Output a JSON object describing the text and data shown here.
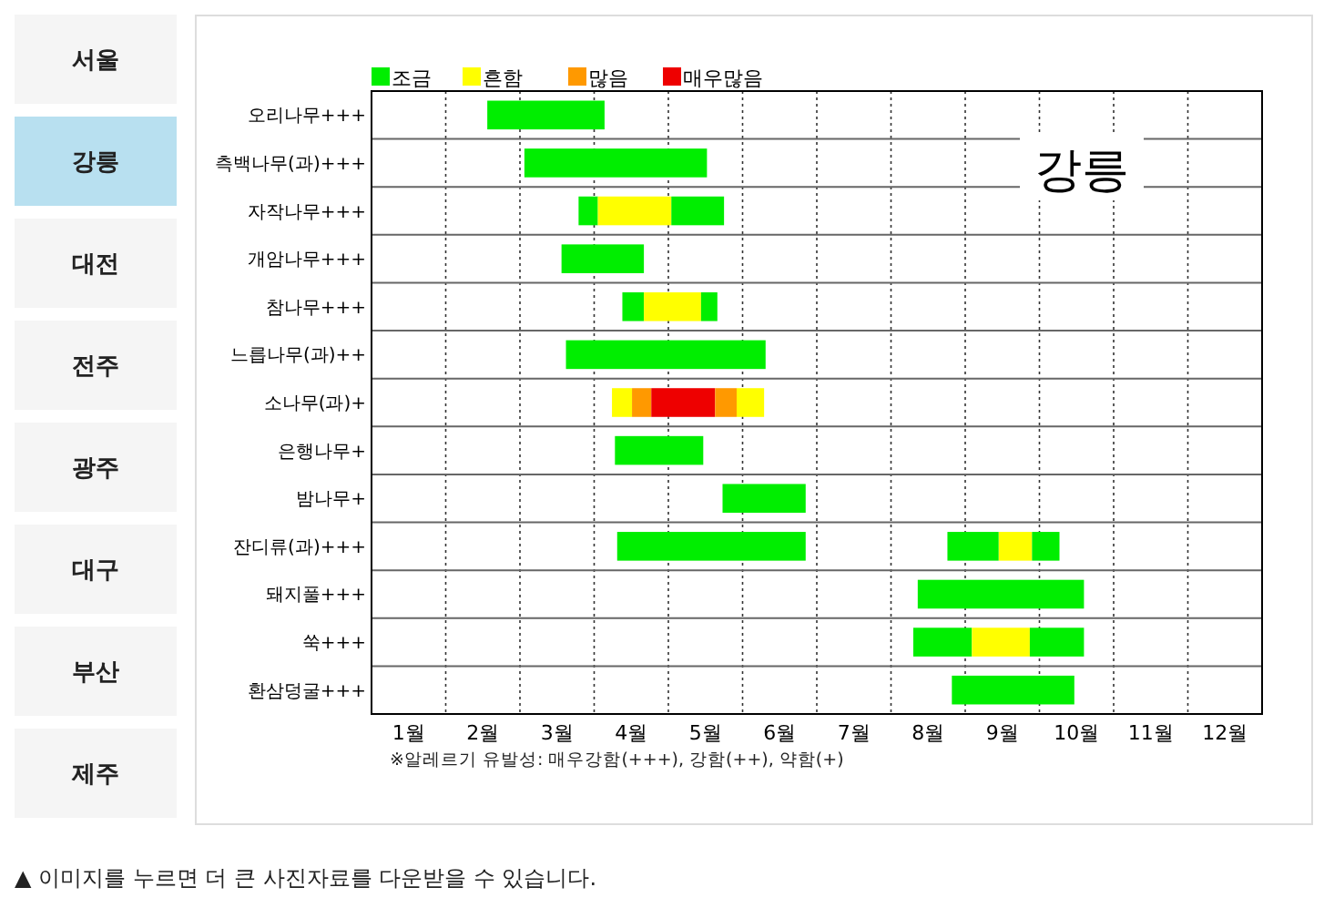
{
  "chart_data": [
    {
      "type": "other",
      "categories": [
        "서울",
        "강릉",
        "대전",
        "전주",
        "광주",
        "대구",
        "부산",
        "제주"
      ]
    },
    {
      "type": "bar",
      "orientation": "horizontal",
      "title": "강릉",
      "categories": [
        "오리나무+++",
        "측백나무(과)+++",
        "자작나무+++",
        "개암나무+++",
        "참나무+++",
        "느릅나무(과)++",
        "소나무(과)+",
        "은행나무+",
        "밤나무+",
        "잔디류(과)+++",
        "돼지풀+++",
        "쑥+++",
        "환삼덩굴+++"
      ],
      "series": [
        {
          "name": "조금",
          "color": "#00ee00",
          "base": [
            1.56,
            2.06,
            2.79,
            2.56,
            3.38,
            2.62,
            null,
            3.28,
            4.73,
            3.31,
            7.36,
            7.3,
            7.82
          ],
          "values": [
            1.58,
            2.46,
            0.26,
            1.11,
            0.29,
            2.69,
            null,
            1.19,
            1.12,
            2.54,
            2.24,
            0.79,
            1.65
          ]
        },
        {
          "name": "흔함",
          "color": "#ffff00",
          "base": [
            null,
            null,
            3.05,
            null,
            3.67,
            null,
            3.24,
            null,
            null,
            8.45,
            null,
            8.09,
            null
          ],
          "values": [
            null,
            null,
            0.99,
            null,
            0.77,
            null,
            0.27,
            null,
            null,
            0.45,
            null,
            0.78,
            null
          ]
        },
        {
          "name": "많음",
          "color": "#ff9900",
          "base": [
            null,
            null,
            null,
            null,
            null,
            null,
            3.51,
            null,
            null,
            null,
            null,
            null,
            null
          ],
          "values": [
            null,
            null,
            null,
            null,
            null,
            null,
            0.26,
            null,
            null,
            null,
            null,
            null,
            null
          ]
        },
        {
          "name": "매우많음",
          "color": "#ee0000",
          "base": [
            null,
            null,
            null,
            null,
            null,
            null,
            3.77,
            null,
            null,
            null,
            null,
            null,
            null
          ],
          "values": [
            null,
            null,
            null,
            null,
            null,
            null,
            0.86,
            null,
            null,
            null,
            null,
            null,
            null
          ]
        },
        {
          "color": "#00ee00",
          "base": [
            null,
            null,
            4.04,
            null,
            4.44,
            null,
            null,
            null,
            null,
            7.76,
            null,
            8.87,
            null
          ],
          "values": [
            null,
            null,
            0.71,
            null,
            0.22,
            null,
            null,
            null,
            null,
            0.69,
            null,
            0.73,
            null
          ]
        },
        {
          "color": "#ff9900",
          "base": [
            null,
            null,
            null,
            null,
            null,
            null,
            4.63,
            null,
            null,
            null,
            null,
            null,
            null
          ],
          "values": [
            null,
            null,
            null,
            null,
            null,
            null,
            0.29,
            null,
            null,
            null,
            null,
            null,
            null
          ]
        },
        {
          "color": "#ffff00",
          "base": [
            null,
            null,
            null,
            null,
            null,
            null,
            4.92,
            null,
            null,
            null,
            null,
            null,
            null
          ],
          "values": [
            null,
            null,
            null,
            null,
            null,
            null,
            0.37,
            null,
            null,
            null,
            null,
            null,
            null
          ]
        },
        {
          "color": "#00ee00",
          "base": [
            null,
            null,
            null,
            null,
            null,
            null,
            null,
            null,
            null,
            8.9,
            null,
            null,
            null
          ],
          "values": [
            null,
            null,
            null,
            null,
            null,
            null,
            null,
            null,
            null,
            0.37,
            null,
            null,
            null
          ]
        }
      ],
      "xlim": [
        0,
        12
      ],
      "xticks": [
        {
          "value": 0.5,
          "label": "1월"
        },
        {
          "value": 1,
          "label": null
        },
        {
          "value": 1.5,
          "label": "2월"
        },
        {
          "value": 2,
          "label": null
        },
        {
          "value": 2.5,
          "label": "3월"
        },
        {
          "value": 3,
          "label": null
        },
        {
          "value": 3.5,
          "label": "4월"
        },
        {
          "value": 4,
          "label": null
        },
        {
          "value": 4.5,
          "label": "5월"
        },
        {
          "value": 5,
          "label": null
        },
        {
          "value": 5.5,
          "label": "6월"
        },
        {
          "value": 6,
          "label": null
        },
        {
          "value": 6.5,
          "label": "7월"
        },
        {
          "value": 7,
          "label": null
        },
        {
          "value": 7.5,
          "label": "8월"
        },
        {
          "value": 8,
          "label": null
        },
        {
          "value": 8.5,
          "label": "9월"
        },
        {
          "value": 9,
          "label": null
        },
        {
          "value": 9.5,
          "label": "10월"
        },
        {
          "value": 10,
          "label": null
        },
        {
          "value": 10.5,
          "label": "11월"
        },
        {
          "value": 11,
          "label": null
        },
        {
          "value": 11.5,
          "label": "12월"
        }
      ],
      "grid": true,
      "legend": "top left",
      "annotations": [
        "※알레르기 유발성: 매우강함(+++), 강함(++), 약함(+)",
        "▲ 이미지를 누르면 더 큰 사진자료를 다운받을 수 있습니다."
      ]
    }
  ]
}
